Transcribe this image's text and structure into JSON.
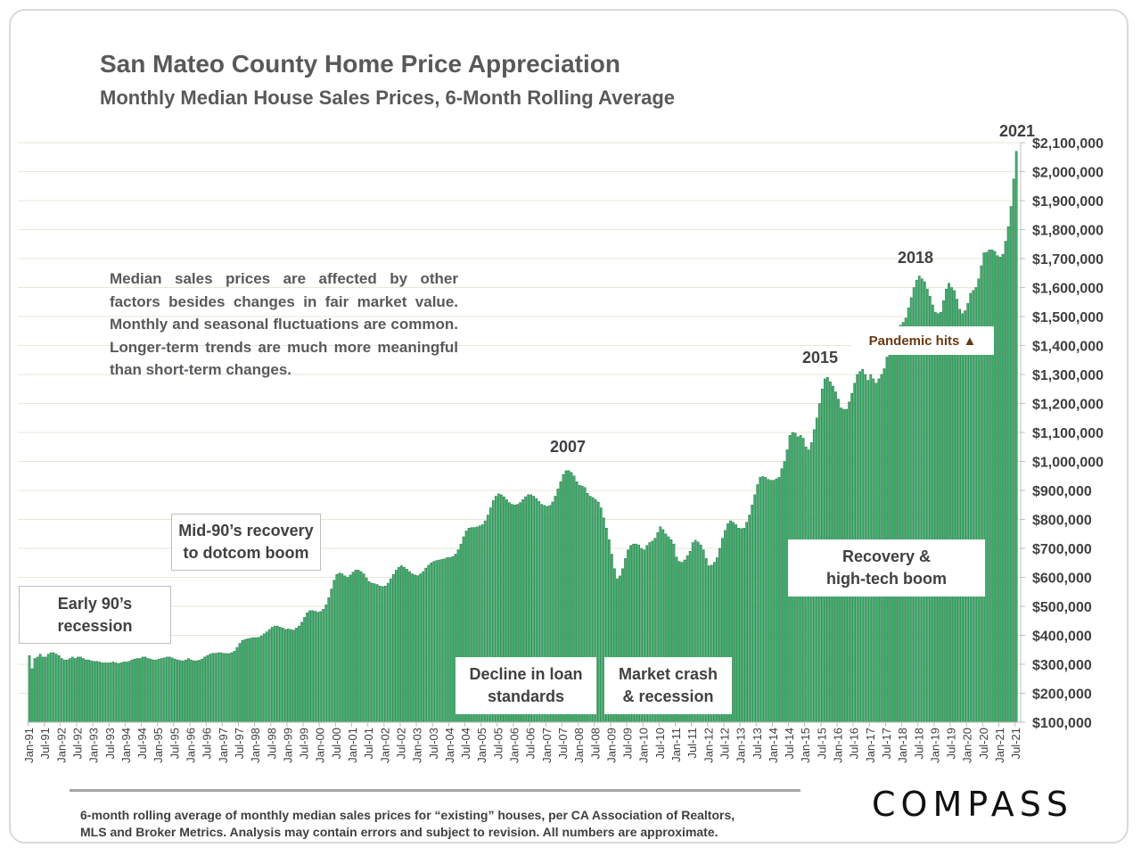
{
  "header": {
    "title": "San Mateo County Home Price Appreciation",
    "subtitle": "Monthly Median House Sales Prices, 6-Month Rolling Average"
  },
  "note": "Median sales prices are affected by other factors besides changes in fair market value. Monthly and seasonal fluctuations are common. Longer-term trends are much more meaningful than short-term changes.",
  "annotations": {
    "early90s": [
      "Early 90’s",
      "recession"
    ],
    "mid90s": [
      "Mid-90’s recovery",
      "to dotcom boom"
    ],
    "loan": [
      "Decline in loan",
      "standards"
    ],
    "crash": [
      "Market crash",
      "& recession"
    ],
    "recovery": [
      "Recovery &",
      "high-tech boom"
    ],
    "pandemic": "Pandemic hits ▲",
    "y2007": "2007",
    "y2015": "2015",
    "y2018": "2018",
    "y2021": "2021"
  },
  "footer": {
    "line1": "6-month rolling average of monthly median sales prices for “existing” houses, per CA Association of Realtors,",
    "line2": "MLS and Broker Metrics.  Analysis may contain errors and subject to revision. All numbers are approximate.",
    "logo": "COMPASS"
  },
  "colors": {
    "bar": "#3cb56e",
    "bar_edge": "#2a6e45",
    "grid": "#ebe6d8",
    "text": "#404040",
    "pandemic": "#6b3a10"
  },
  "chart_data": {
    "type": "bar",
    "title": "San Mateo County Home Price Appreciation",
    "subtitle": "Monthly Median House Sales Prices, 6-Month Rolling Average",
    "frequency": "monthly",
    "units": "thousands of dollars",
    "ylim": [
      100000,
      2100000
    ],
    "y_axis_side": "right",
    "grid": true,
    "y_tick_labels": [
      "$100,000",
      "$200,000",
      "$300,000",
      "$400,000",
      "$500,000",
      "$600,000",
      "$700,000",
      "$800,000",
      "$900,000",
      "$1,000,000",
      "$1,100,000",
      "$1,200,000",
      "$1,300,000",
      "$1,400,000",
      "$1,500,000",
      "$1,600,000",
      "$1,700,000",
      "$1,800,000",
      "$1,900,000",
      "$2,000,000",
      "$2,100,000"
    ],
    "x_tick_labels": [
      "Jan-91",
      "Jul-91",
      "Jan-92",
      "Jul-92",
      "Jan-93",
      "Jul-93",
      "Jan-94",
      "Jul-94",
      "Jan-95",
      "Jul-95",
      "Jan-96",
      "Jul-96",
      "Jan-97",
      "Jul-97",
      "Jan-98",
      "Jul-98",
      "Jan-99",
      "Jul-99",
      "Jan-00",
      "Jul-00",
      "Jan-01",
      "Jul-01",
      "Jan-02",
      "Jul-02",
      "Jan-03",
      "Jul-03",
      "Jan-04",
      "Jul-04",
      "Jan-05",
      "Jul-05",
      "Jan-06",
      "Jul-06",
      "Jan-07",
      "Jul-07",
      "Jan-08",
      "Jul-08",
      "Jan-09",
      "Jul-09",
      "Jan-10",
      "Jul-10",
      "Jan-11",
      "Jul-11",
      "Jan-12",
      "Jul-12",
      "Jan-13",
      "Jul-13",
      "Jan-14",
      "Jul-14",
      "Jan-15",
      "Jul-15",
      "Jan-16",
      "Jul-16",
      "Jan-17",
      "Jul-17",
      "Jan-18",
      "Jul-18",
      "Jan-19",
      "Jul-19",
      "Jan-20",
      "Jul-20",
      "Jan-21",
      "Jul-21"
    ],
    "values_by_year": {
      "1991": [
        330,
        285,
        320,
        325,
        335,
        325,
        325,
        335,
        340,
        340,
        335,
        330
      ],
      "1992": [
        320,
        315,
        315,
        320,
        325,
        320,
        325,
        325,
        320,
        315,
        315,
        312
      ],
      "1993": [
        310,
        310,
        308,
        305,
        305,
        305,
        305,
        308,
        305,
        303,
        305,
        308
      ],
      "1994": [
        308,
        310,
        315,
        318,
        320,
        320,
        325,
        325,
        320,
        318,
        315,
        315
      ],
      "1995": [
        318,
        320,
        322,
        325,
        325,
        322,
        318,
        315,
        313,
        312,
        315,
        320
      ],
      "1996": [
        315,
        312,
        312,
        314,
        318,
        325,
        330,
        335,
        338,
        338,
        340,
        340
      ],
      "1997": [
        338,
        337,
        337,
        340,
        345,
        358,
        372,
        382,
        386,
        388,
        390,
        392
      ],
      "1998": [
        392,
        393,
        398,
        405,
        412,
        420,
        428,
        432,
        432,
        428,
        425,
        420
      ],
      "1999": [
        422,
        420,
        418,
        425,
        432,
        445,
        462,
        478,
        485,
        485,
        483,
        480
      ],
      "2000": [
        482,
        490,
        505,
        530,
        560,
        590,
        610,
        615,
        612,
        605,
        600,
        608
      ],
      "2001": [
        618,
        625,
        625,
        620,
        612,
        598,
        585,
        580,
        578,
        575,
        570,
        568
      ],
      "2002": [
        570,
        580,
        595,
        610,
        625,
        635,
        640,
        635,
        628,
        620,
        612,
        608
      ],
      "2003": [
        606,
        612,
        620,
        632,
        642,
        650,
        655,
        658,
        660,
        662,
        664,
        668
      ],
      "2004": [
        668,
        672,
        680,
        695,
        715,
        740,
        760,
        770,
        772,
        772,
        774,
        778
      ],
      "2005": [
        782,
        795,
        815,
        840,
        865,
        880,
        888,
        885,
        878,
        868,
        858,
        852
      ],
      "2006": [
        850,
        852,
        858,
        868,
        878,
        885,
        885,
        880,
        872,
        862,
        852,
        848
      ],
      "2007": [
        845,
        848,
        860,
        880,
        905,
        930,
        955,
        968,
        968,
        962,
        950,
        930
      ],
      "2008": [
        918,
        915,
        910,
        890,
        880,
        875,
        868,
        860,
        840,
        805,
        770,
        730
      ],
      "2009": [
        680,
        630,
        595,
        605,
        630,
        665,
        695,
        710,
        715,
        715,
        712,
        700
      ],
      "2010": [
        695,
        710,
        720,
        725,
        735,
        755,
        775,
        765,
        750,
        740,
        730,
        715
      ],
      "2011": [
        670,
        655,
        652,
        660,
        675,
        690,
        720,
        728,
        722,
        712,
        695,
        665
      ],
      "2012": [
        640,
        642,
        652,
        668,
        700,
        735,
        762,
        785,
        795,
        790,
        782,
        770
      ],
      "2013": [
        768,
        770,
        790,
        815,
        850,
        885,
        920,
        945,
        948,
        945,
        938,
        935
      ],
      "2014": [
        935,
        940,
        945,
        975,
        1000,
        1040,
        1090,
        1100,
        1098,
        1085,
        1090,
        1080
      ],
      "2015": [
        1050,
        1040,
        1065,
        1110,
        1150,
        1200,
        1250,
        1285,
        1290,
        1275,
        1260,
        1240
      ],
      "2016": [
        1215,
        1185,
        1180,
        1180,
        1205,
        1235,
        1270,
        1300,
        1310,
        1318,
        1300,
        1280
      ],
      "2017": [
        1300,
        1285,
        1270,
        1285,
        1300,
        1320,
        1360,
        1400,
        1420,
        1440,
        1460,
        1470
      ],
      "2018": [
        1480,
        1495,
        1530,
        1565,
        1600,
        1625,
        1640,
        1630,
        1620,
        1595,
        1570,
        1540
      ],
      "2019": [
        1515,
        1510,
        1515,
        1555,
        1595,
        1615,
        1600,
        1590,
        1560,
        1525,
        1510,
        1520
      ],
      "2020": [
        1545,
        1580,
        1590,
        1600,
        1630,
        1675,
        1720,
        1722,
        1730,
        1730,
        1725,
        1710
      ],
      "2021": [
        1705,
        1715,
        1760,
        1810,
        1880,
        1975,
        2070
      ]
    }
  }
}
